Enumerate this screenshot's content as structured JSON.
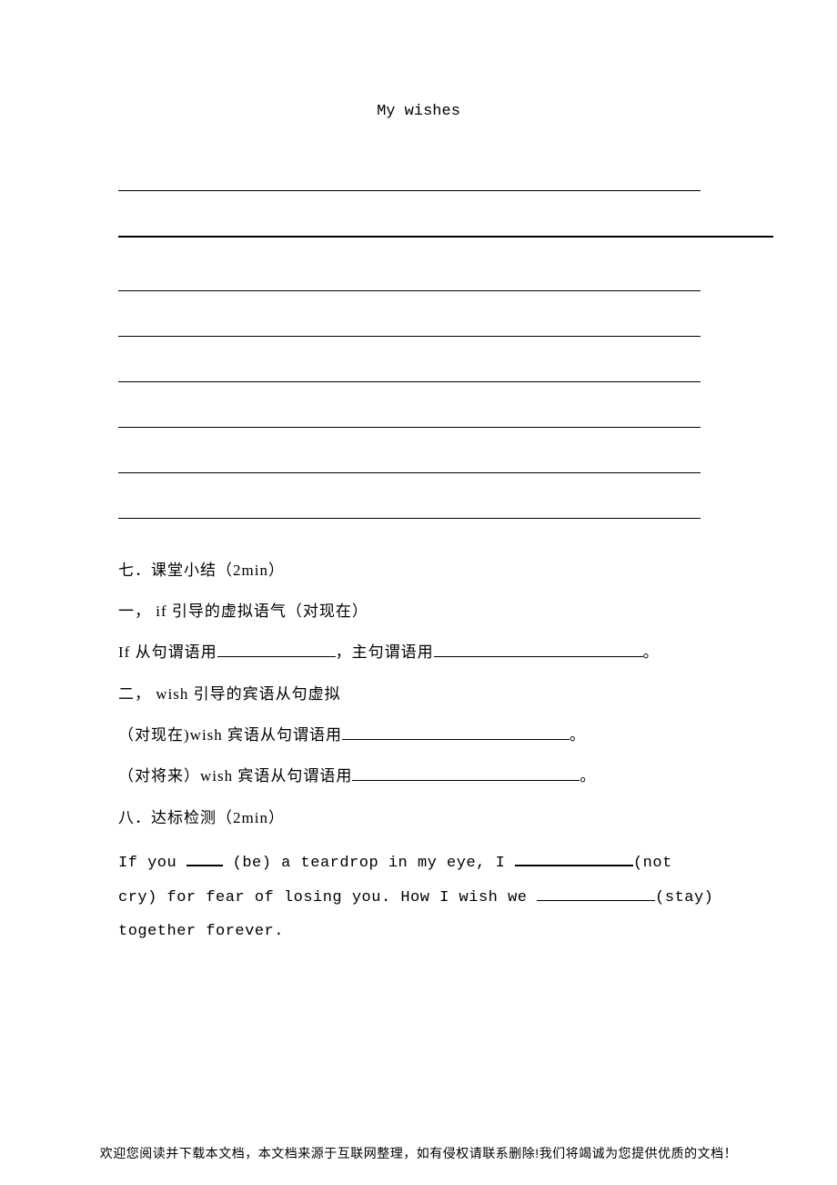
{
  "title": "My wishes",
  "section7": {
    "heading": "七．课堂小结（2min）",
    "item1_label": "一， if 引导的虚拟语气（对现在）",
    "item1_line_pre": "If 从句谓语用",
    "item1_line_mid": "，主句谓语用",
    "item1_line_end": "。",
    "item2_label": "二， wish 引导的宾语从句虚拟",
    "item2_line1_pre": "（对现在)wish 宾语从句谓语用",
    "item2_line1_end": "。",
    "item2_line2_pre": "（对将来）wish 宾语从句谓语用",
    "item2_line2_end": "。"
  },
  "section8": {
    "heading": "八．达标检测（2min）",
    "exercise_1": "If you ",
    "exercise_2": " (be) a teardrop in my eye, I ",
    "exercise_3": "(not",
    "exercise_4": "cry) for fear of losing you. How I wish we ",
    "exercise_5": "(stay)",
    "exercise_6": "together forever."
  },
  "footer": "欢迎您阅读并下载本文档，本文档来源于互联网整理，如有侵权请联系删除!我们将竭诚为您提供优质的文档！"
}
